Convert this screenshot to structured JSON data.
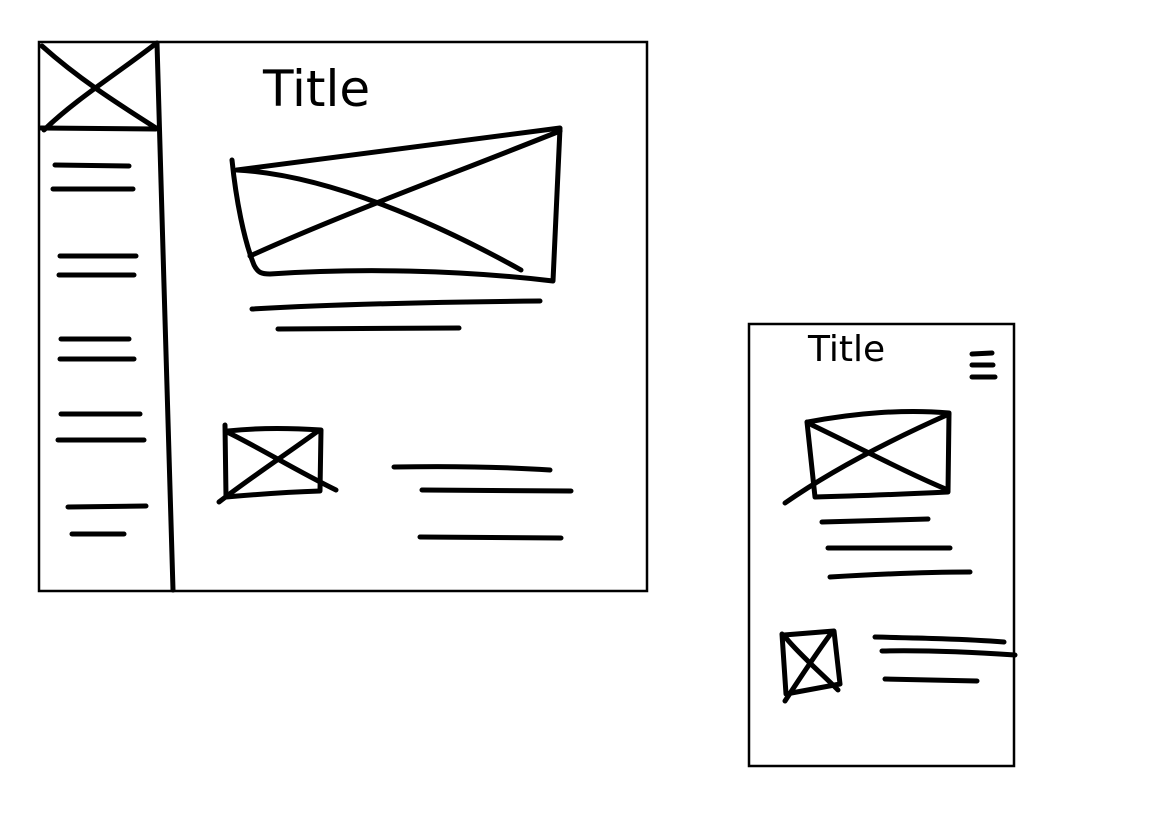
{
  "desktop": {
    "title": "Title"
  },
  "mobile": {
    "title": "Title",
    "menu_icon": "hamburger-menu-icon"
  },
  "image_placeholder_icon": "image-placeholder-x",
  "colors": {
    "ink": "#000000",
    "paper": "#ffffff"
  }
}
